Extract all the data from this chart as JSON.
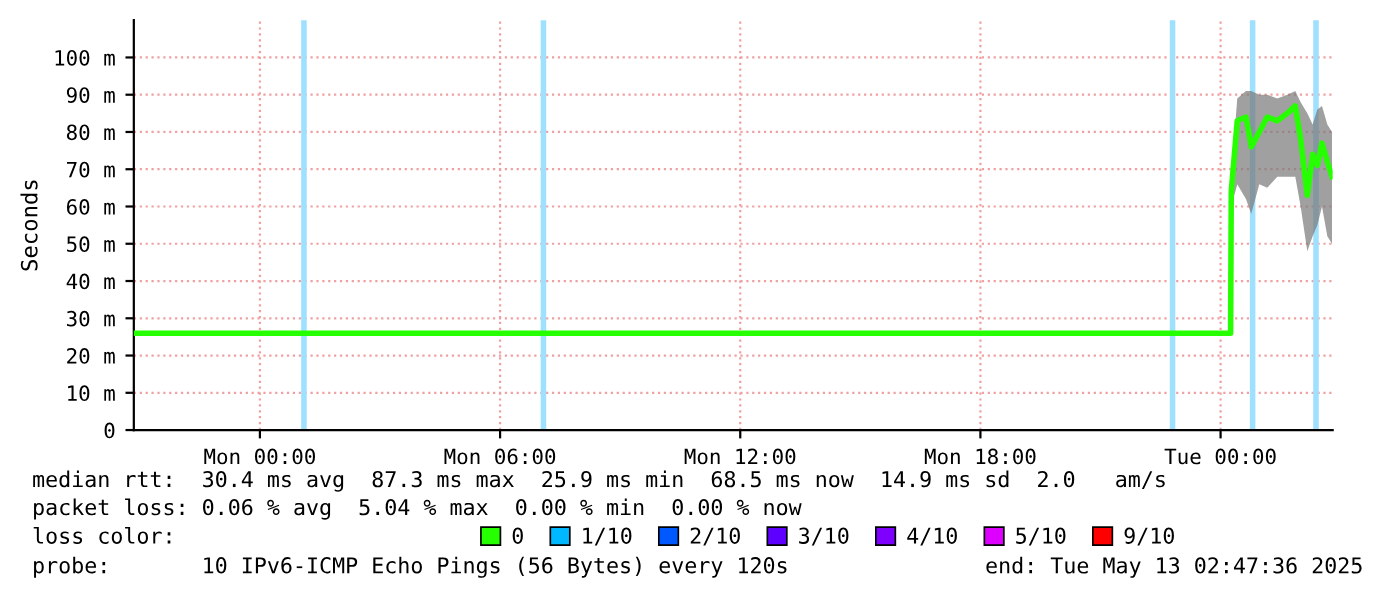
{
  "chart_data": {
    "type": "line",
    "ylabel": "Seconds",
    "legend_title": "loss color:",
    "x": [
      "2025-05-11T20:51",
      "2025-05-13T00:15",
      "2025-05-13T00:16",
      "2025-05-13T00:25",
      "2025-05-13T00:38",
      "2025-05-13T00:46",
      "2025-05-13T00:58",
      "2025-05-13T01:10",
      "2025-05-13T01:25",
      "2025-05-13T01:40",
      "2025-05-13T01:52",
      "2025-05-13T02:00",
      "2025-05-13T02:10",
      "2025-05-13T02:18",
      "2025-05-13T02:25",
      "2025-05-13T02:32",
      "2025-05-13T02:40",
      "2025-05-13T02:47"
    ],
    "series": [
      {
        "name": "0",
        "color": "#26ff00",
        "values": [
          26,
          26,
          64,
          83,
          84,
          76,
          80,
          84,
          83,
          85,
          87,
          78,
          63,
          74,
          71,
          77,
          72,
          68
        ],
        "lower": [
          null,
          null,
          60,
          66,
          62,
          58,
          66,
          65,
          68,
          68,
          68,
          60,
          48,
          52,
          55,
          60,
          52,
          50
        ],
        "upper": [
          null,
          null,
          68,
          89,
          91,
          91,
          90,
          90,
          89,
          90,
          91,
          88,
          85,
          82,
          86,
          87,
          82,
          80
        ]
      },
      {
        "name": "1/10",
        "color": "#00b8ff",
        "values": [
          null,
          null,
          null,
          null,
          null,
          null,
          null,
          null,
          null,
          null,
          null,
          null,
          null,
          null,
          null,
          null,
          null,
          null
        ]
      },
      {
        "name": "2/10",
        "color": "#0059ff",
        "values": [
          null,
          null,
          null,
          null,
          null,
          null,
          null,
          null,
          null,
          null,
          null,
          null,
          null,
          null,
          null,
          null,
          null,
          null
        ]
      },
      {
        "name": "3/10",
        "color": "#5e00ff",
        "values": [
          null,
          null,
          null,
          null,
          null,
          null,
          null,
          null,
          null,
          null,
          null,
          null,
          null,
          null,
          null,
          null,
          null,
          null
        ]
      },
      {
        "name": "4/10",
        "color": "#7e00ff",
        "values": [
          null,
          null,
          null,
          null,
          null,
          null,
          null,
          null,
          null,
          null,
          null,
          null,
          null,
          null,
          null,
          null,
          null,
          null
        ]
      },
      {
        "name": "5/10",
        "color": "#dd00ff",
        "values": [
          null,
          null,
          null,
          null,
          null,
          null,
          null,
          null,
          null,
          null,
          null,
          null,
          null,
          null,
          null,
          null,
          null,
          null
        ]
      },
      {
        "name": "9/10",
        "color": "#ff0000",
        "values": [
          null,
          null,
          null,
          null,
          null,
          null,
          null,
          null,
          null,
          null,
          null,
          null,
          null,
          null,
          null,
          null,
          null,
          null
        ]
      }
    ],
    "ref_lines": [
      {
        "axis": "x",
        "value": "2025-05-12T01:06",
        "color": "#a0e0ff"
      },
      {
        "axis": "x",
        "value": "2025-05-12T07:05",
        "color": "#a0e0ff"
      },
      {
        "axis": "x",
        "value": "2025-05-12T22:48",
        "color": "#a0e0ff"
      },
      {
        "axis": "x",
        "value": "2025-05-13T00:48",
        "color": "#a0e0ff"
      },
      {
        "axis": "x",
        "value": "2025-05-13T02:23",
        "color": "#a0e0ff"
      }
    ],
    "xlim": [
      "2025-05-11T20:51",
      "2025-05-13T02:48"
    ],
    "xticks": [
      {
        "value": "2025-05-12T00:00",
        "label": "Mon 00:00"
      },
      {
        "value": "2025-05-12T06:00",
        "label": "Mon 06:00"
      },
      {
        "value": "2025-05-12T12:00",
        "label": "Mon 12:00"
      },
      {
        "value": "2025-05-12T18:00",
        "label": "Mon 18:00"
      },
      {
        "value": "2025-05-13T00:00",
        "label": "Tue 00:00"
      }
    ],
    "ylim": [
      0,
      110
    ],
    "yticks": [
      0,
      {
        "value": 10,
        "label": "10 m"
      },
      {
        "value": 20,
        "label": "20 m"
      },
      {
        "value": 30,
        "label": "30 m"
      },
      {
        "value": 40,
        "label": "40 m"
      },
      {
        "value": 50,
        "label": "50 m"
      },
      {
        "value": 60,
        "label": "60 m"
      },
      {
        "value": 70,
        "label": "70 m"
      },
      {
        "value": 80,
        "label": "80 m"
      },
      {
        "value": 90,
        "label": "90 m"
      },
      {
        "value": 100,
        "label": "100 m"
      }
    ],
    "grid": true,
    "legend": "bottom",
    "annotations": [
      "median rtt:  30.4 ms avg  87.3 ms max  25.9 ms min  68.5 ms now  14.9 ms sd  2.0   am/s",
      "packet loss: 0.06 % avg  5.04 % max  0.00 % min  0.00 % now",
      "probe:       10 IPv6-ICMP Echo Pings (56 Bytes) every 120s",
      "end: Tue May 13 02:47:36 2025"
    ]
  }
}
